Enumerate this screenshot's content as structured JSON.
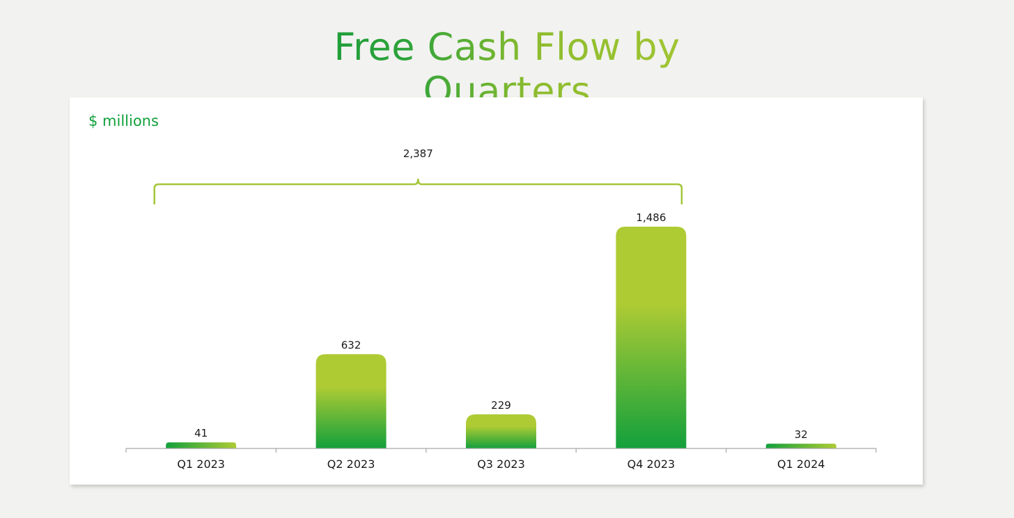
{
  "page": {
    "title": "Free Cash Flow by Quarters"
  },
  "chart_data": {
    "type": "bar",
    "title": "Free Cash Flow by Quarters",
    "units_label": "$ millions",
    "categories": [
      "Q1 2023",
      "Q2 2023",
      "Q3 2023",
      "Q4 2023",
      "Q1 2024"
    ],
    "values": [
      41,
      632,
      229,
      1486,
      32
    ],
    "value_labels": [
      "41",
      "632",
      "229",
      "1,486",
      "32"
    ],
    "ylim": [
      0,
      1486
    ],
    "grid": false,
    "bracket": {
      "label": "2,387",
      "value": 2387,
      "spans": [
        "Q1 2023",
        "Q4 2023"
      ]
    },
    "colors": {
      "bar_top": "#aecb34",
      "bar_bottom": "#12a03c",
      "bracket": "#a4c639",
      "title_start": "#129a3a",
      "title_end": "#a9c934",
      "units": "#12a03c"
    }
  }
}
